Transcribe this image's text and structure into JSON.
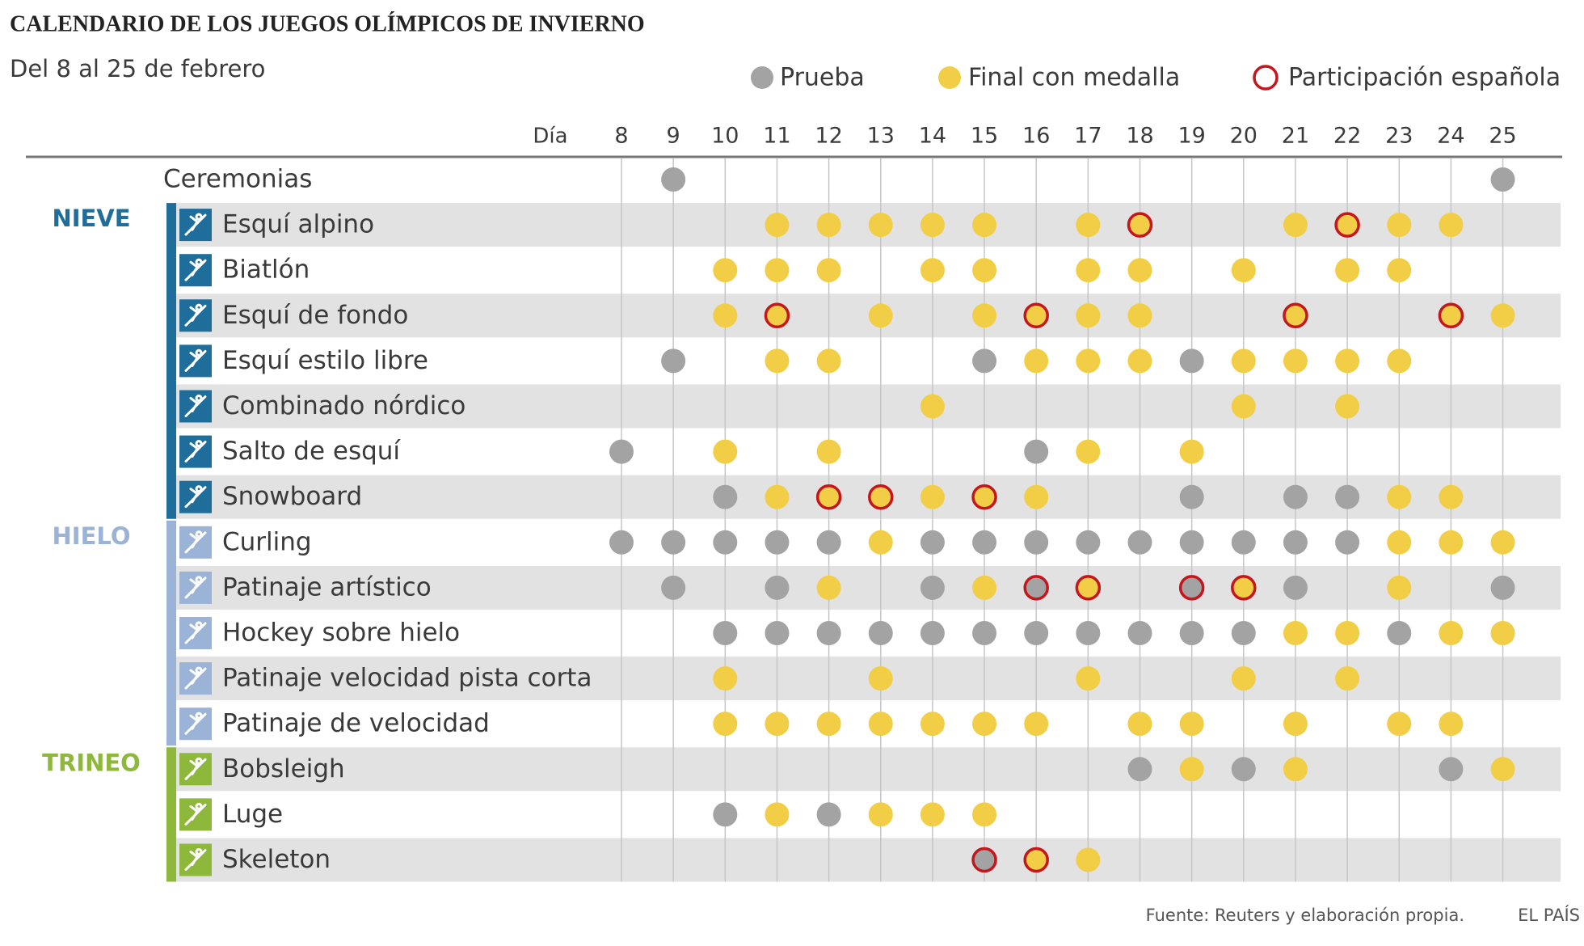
{
  "header": {
    "title": "CALENDARIO DE LOS JUEGOS OLÍMPICOS DE INVIERNO",
    "subtitle": "Del 8 al 25 de febrero"
  },
  "legend": [
    {
      "label": "Prueba",
      "color": "#a3a3a3"
    },
    {
      "label": "Final con medalla",
      "color": "#f2cd46"
    },
    {
      "label": "Participación española",
      "color": "#c4161c"
    }
  ],
  "day_label": "Día",
  "days": [
    8,
    9,
    10,
    11,
    12,
    13,
    14,
    15,
    16,
    17,
    18,
    19,
    20,
    21,
    22,
    23,
    24,
    25
  ],
  "ceremony": {
    "label": "Ceremonias",
    "cells": [
      null,
      [
        0
      ],
      null,
      null,
      null,
      null,
      null,
      null,
      null,
      null,
      null,
      null,
      null,
      null,
      null,
      null,
      null,
      [
        0
      ]
    ]
  },
  "groups": [
    {
      "name": "NIEVE",
      "color": "#1f6d9b",
      "rows": [
        {
          "label": "Esquí alpino",
          "cells": [
            null,
            null,
            null,
            [
              1
            ],
            [
              1
            ],
            [
              1
            ],
            [
              1
            ],
            [
              1
            ],
            null,
            [
              1
            ],
            [
              1,
              2
            ],
            null,
            null,
            [
              1
            ],
            [
              1,
              2
            ],
            [
              1
            ],
            [
              1
            ],
            null
          ]
        },
        {
          "label": "Biatlón",
          "cells": [
            null,
            null,
            [
              1
            ],
            [
              1
            ],
            [
              1
            ],
            null,
            [
              1
            ],
            [
              1
            ],
            null,
            [
              1
            ],
            [
              1
            ],
            null,
            [
              1
            ],
            null,
            [
              1
            ],
            [
              1
            ],
            null,
            null
          ]
        },
        {
          "label": "Esquí de fondo",
          "cells": [
            null,
            null,
            [
              1
            ],
            [
              1,
              2
            ],
            null,
            [
              1
            ],
            null,
            [
              1
            ],
            [
              1,
              2
            ],
            [
              1
            ],
            [
              1
            ],
            null,
            null,
            [
              1,
              2
            ],
            null,
            null,
            [
              1,
              2
            ],
            [
              1
            ]
          ]
        },
        {
          "label": "Esquí estilo libre",
          "cells": [
            null,
            [
              0
            ],
            null,
            [
              1
            ],
            [
              1
            ],
            null,
            null,
            [
              0
            ],
            [
              1
            ],
            [
              1
            ],
            [
              1
            ],
            [
              0
            ],
            [
              1
            ],
            [
              1
            ],
            [
              1
            ],
            [
              1
            ],
            null,
            null
          ]
        },
        {
          "label": "Combinado nórdico",
          "cells": [
            null,
            null,
            null,
            null,
            null,
            null,
            [
              1
            ],
            null,
            null,
            null,
            null,
            null,
            [
              1
            ],
            null,
            [
              1
            ],
            null,
            null,
            null
          ]
        },
        {
          "label": "Salto de esquí",
          "cells": [
            [
              0
            ],
            null,
            [
              1
            ],
            null,
            [
              1
            ],
            null,
            null,
            null,
            [
              0
            ],
            [
              1
            ],
            null,
            [
              1
            ],
            null,
            null,
            null,
            null,
            null,
            null
          ]
        },
        {
          "label": "Snowboard",
          "cells": [
            null,
            null,
            [
              0
            ],
            [
              1
            ],
            [
              1,
              2
            ],
            [
              1,
              2
            ],
            [
              1
            ],
            [
              1,
              2
            ],
            [
              1
            ],
            null,
            null,
            [
              0
            ],
            null,
            [
              0
            ],
            [
              0
            ],
            [
              1
            ],
            [
              1
            ],
            null
          ]
        }
      ]
    },
    {
      "name": "HIELO",
      "color": "#9ab3d6",
      "rows": [
        {
          "label": "Curling",
          "cells": [
            [
              0
            ],
            [
              0
            ],
            [
              0
            ],
            [
              0
            ],
            [
              0
            ],
            [
              1
            ],
            [
              0
            ],
            [
              0
            ],
            [
              0
            ],
            [
              0
            ],
            [
              0
            ],
            [
              0
            ],
            [
              0
            ],
            [
              0
            ],
            [
              0
            ],
            [
              1
            ],
            [
              1
            ],
            [
              1
            ]
          ]
        },
        {
          "label": "Patinaje artístico",
          "cells": [
            null,
            [
              0
            ],
            null,
            [
              0
            ],
            [
              1
            ],
            null,
            [
              0
            ],
            [
              1
            ],
            [
              0,
              2
            ],
            [
              1,
              2
            ],
            null,
            [
              0,
              2
            ],
            [
              1,
              2
            ],
            [
              0
            ],
            null,
            [
              1
            ],
            null,
            [
              0
            ]
          ]
        },
        {
          "label": "Hockey sobre hielo",
          "cells": [
            null,
            null,
            [
              0
            ],
            [
              0
            ],
            [
              0
            ],
            [
              0
            ],
            [
              0
            ],
            [
              0
            ],
            [
              0
            ],
            [
              0
            ],
            [
              0
            ],
            [
              0
            ],
            [
              0
            ],
            [
              1
            ],
            [
              1
            ],
            [
              0
            ],
            [
              1
            ],
            [
              1
            ]
          ]
        },
        {
          "label": "Patinaje velocidad pista corta",
          "cells": [
            null,
            null,
            [
              1
            ],
            null,
            null,
            [
              1
            ],
            null,
            null,
            null,
            [
              1
            ],
            null,
            null,
            [
              1
            ],
            null,
            [
              1
            ],
            null,
            null,
            null
          ]
        },
        {
          "label": "Patinaje de velocidad",
          "cells": [
            null,
            null,
            [
              1
            ],
            [
              1
            ],
            [
              1
            ],
            [
              1
            ],
            [
              1
            ],
            [
              1
            ],
            [
              1
            ],
            null,
            [
              1
            ],
            [
              1
            ],
            null,
            [
              1
            ],
            null,
            [
              1
            ],
            [
              1
            ],
            null
          ]
        }
      ]
    },
    {
      "name": "TRINEO",
      "color": "#8db83b",
      "rows": [
        {
          "label": "Bobsleigh",
          "cells": [
            null,
            null,
            null,
            null,
            null,
            null,
            null,
            null,
            null,
            null,
            [
              0
            ],
            [
              1
            ],
            [
              0
            ],
            [
              1
            ],
            null,
            null,
            [
              0
            ],
            [
              1
            ]
          ]
        },
        {
          "label": "Luge",
          "cells": [
            null,
            null,
            [
              0
            ],
            [
              1
            ],
            [
              0
            ],
            [
              1
            ],
            [
              1
            ],
            [
              1
            ],
            null,
            null,
            null,
            null,
            null,
            null,
            null,
            null,
            null,
            null
          ]
        },
        {
          "label": "Skeleton",
          "cells": [
            null,
            null,
            null,
            null,
            null,
            null,
            null,
            [
              0,
              2
            ],
            [
              1,
              2
            ],
            [
              1
            ],
            null,
            null,
            null,
            null,
            null,
            null,
            null,
            null
          ]
        }
      ]
    }
  ],
  "footer": {
    "source": "Fuente: Reuters y elaboración propia.",
    "brand": "EL PAÍS"
  }
}
